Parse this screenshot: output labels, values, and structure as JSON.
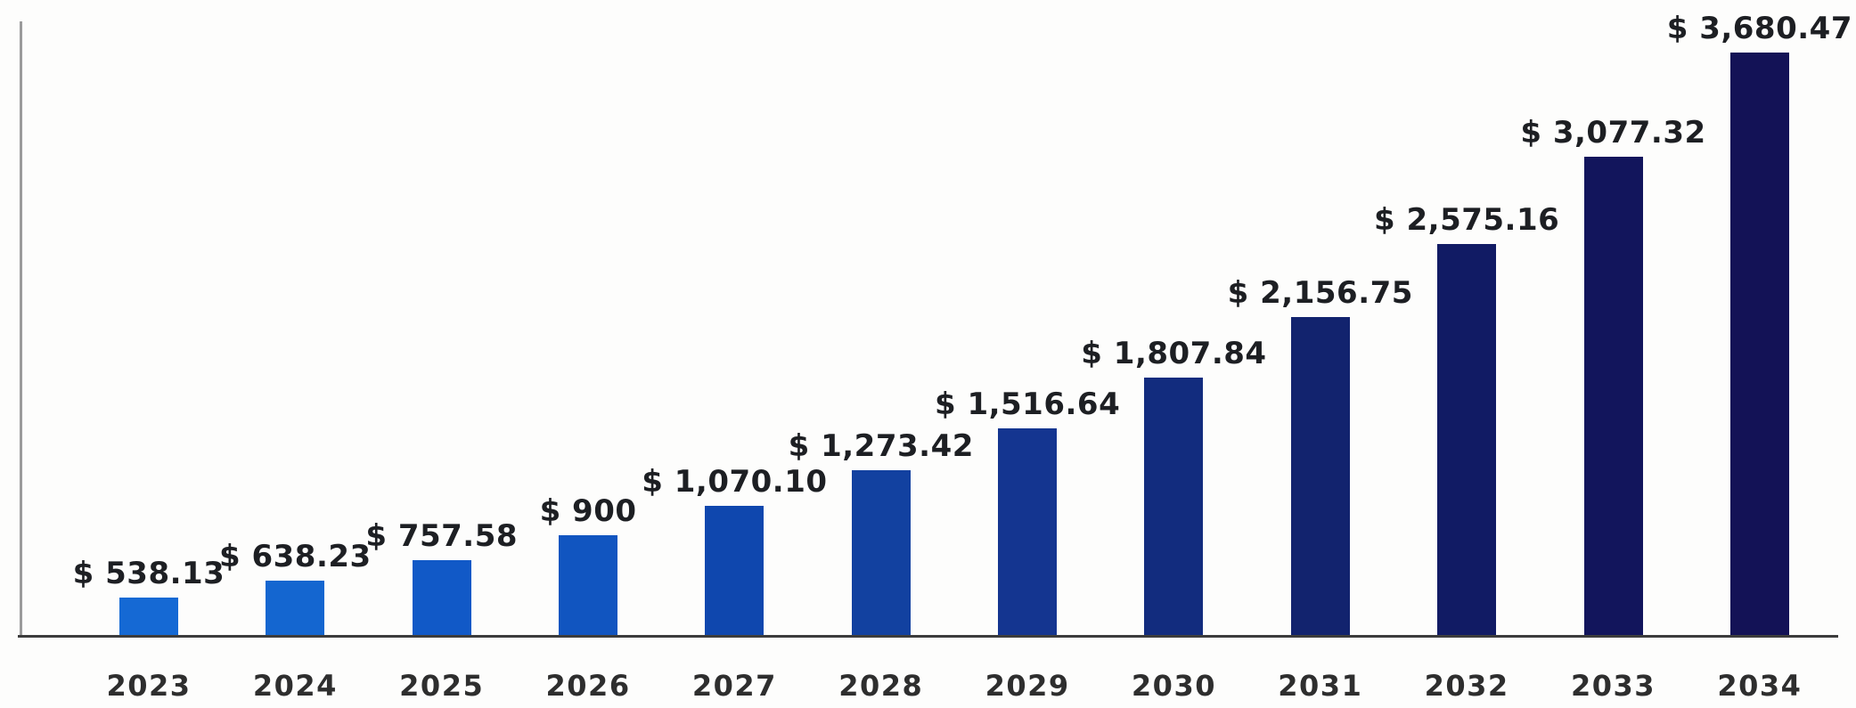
{
  "chart_data": {
    "type": "bar",
    "categories": [
      "2023",
      "2024",
      "2025",
      "2026",
      "2027",
      "2028",
      "2029",
      "2030",
      "2031",
      "2032",
      "2033",
      "2034"
    ],
    "values": [
      538.13,
      638.23,
      757.58,
      900,
      1070.1,
      1273.42,
      1516.64,
      1807.84,
      2156.75,
      2575.16,
      3077.32,
      3680.47
    ],
    "value_labels": [
      "$ 538.13",
      "$ 638.23",
      "$ 757.58",
      "$ 900",
      "$ 1,070.10",
      "$ 1,273.42",
      "$ 1,516.64",
      "$ 1,807.84",
      "$ 2,156.75",
      "$ 2,575.16",
      "$ 3,077.32",
      "$ 3,680.47"
    ],
    "bar_colors": [
      "#1569D4",
      "#1466D0",
      "#1159C7",
      "#1155C0",
      "#0F47AE",
      "#1241A0",
      "#143590",
      "#122C7E",
      "#12236E",
      "#111B64",
      "#12155C",
      "#131256"
    ],
    "xlabel": "",
    "ylabel": "",
    "ylim_estimate": [
      325,
      3800
    ],
    "grid": false,
    "legend": null,
    "value_label_position": "above-bar",
    "colors": {
      "x_axis_line": "#3c3c3c",
      "y_axis_line": "#9b9b9b",
      "value_label_text": "#1d1f23",
      "year_label_text": "#2e2e2e",
      "background": "#fdfdfc"
    }
  }
}
